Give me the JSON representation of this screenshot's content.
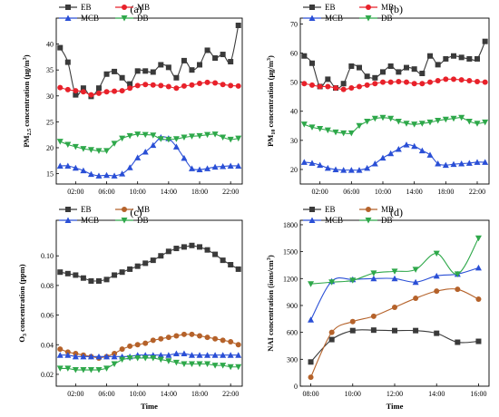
{
  "figure": {
    "colors": {
      "EB": "#3a3a3a",
      "MB": "#e8212a",
      "MCB": "#2a4fd6",
      "DB": "#2ea84a",
      "MB_panel_cd": "#b5622a",
      "background": "#ffffff"
    }
  },
  "chart_data": [
    {
      "id": "a",
      "panel_label": "(a)",
      "type": "line",
      "ylabel": "PM2.5 concentration (μg/m³)",
      "ylabel_parts": {
        "pre": "PM",
        "sub": "2.5",
        "mid": " concentration (μg/m",
        "sup": "3",
        "post": ")"
      },
      "xlabel": "",
      "x_tick_labels": [
        "02:00",
        "06:00",
        "10:00",
        "14:00",
        "18:00",
        "22:00"
      ],
      "x_ticks": [
        2,
        6,
        10,
        14,
        18,
        22
      ],
      "xlim": [
        -0.5,
        23.5
      ],
      "ylim": [
        13,
        45
      ],
      "y_ticks": [
        15,
        20,
        25,
        30,
        35,
        40
      ],
      "y_tick_labels": [
        "15",
        "20",
        "25",
        "30",
        "35",
        "40"
      ],
      "legend": [
        "EB",
        "MB",
        "MCB",
        "DB"
      ],
      "x": [
        0,
        1,
        2,
        3,
        4,
        5,
        6,
        7,
        8,
        9,
        10,
        11,
        12,
        13,
        14,
        15,
        16,
        17,
        18,
        19,
        20,
        21,
        22,
        23
      ],
      "series": [
        {
          "name": "EB",
          "marker": "square",
          "color": "#3a3a3a",
          "values": [
            39.3,
            36.5,
            30.2,
            31.5,
            29.9,
            31.5,
            34.2,
            34.7,
            33.5,
            32.3,
            34.8,
            34.8,
            34.6,
            36.0,
            35.5,
            33.5,
            36.8,
            35.0,
            36.0,
            38.8,
            37.3,
            38.0,
            36.6,
            43.6
          ]
        },
        {
          "name": "MB",
          "marker": "circle",
          "color": "#e8212a",
          "values": [
            31.6,
            31.2,
            31.0,
            30.8,
            30.2,
            30.5,
            30.8,
            30.9,
            31.0,
            31.5,
            32.0,
            32.2,
            32.1,
            32.0,
            31.8,
            31.5,
            31.9,
            32.1,
            32.4,
            32.6,
            32.5,
            32.2,
            32.0,
            31.9
          ]
        },
        {
          "name": "MCB",
          "marker": "triangle-up",
          "color": "#2a4fd6",
          "values": [
            16.5,
            16.5,
            16.1,
            15.6,
            14.9,
            14.6,
            14.7,
            14.6,
            15.0,
            16.2,
            18.1,
            19.2,
            20.5,
            22.0,
            21.8,
            20.2,
            18.0,
            16.0,
            15.8,
            16.0,
            16.3,
            16.4,
            16.5,
            16.5
          ]
        },
        {
          "name": "DB",
          "marker": "triangle-down",
          "color": "#2ea84a",
          "values": [
            21.2,
            20.6,
            20.2,
            19.8,
            19.6,
            19.4,
            19.4,
            20.8,
            21.8,
            22.3,
            22.6,
            22.5,
            22.4,
            21.7,
            21.6,
            21.7,
            22.0,
            22.2,
            22.3,
            22.5,
            22.6,
            22.0,
            21.6,
            21.8
          ]
        }
      ]
    },
    {
      "id": "b",
      "panel_label": "(b)",
      "type": "line",
      "ylabel": "PM10 concentration (μg/m³)",
      "ylabel_parts": {
        "pre": "PM",
        "sub": "10",
        "mid": " concentration (μg/m",
        "sup": "3",
        "post": ")"
      },
      "xlabel": "",
      "x_tick_labels": [
        "02:00",
        "06:00",
        "10:00",
        "14:00",
        "18:00",
        "22:00"
      ],
      "x_ticks": [
        2,
        6,
        10,
        14,
        18,
        22
      ],
      "xlim": [
        -0.5,
        23.5
      ],
      "ylim": [
        15,
        72
      ],
      "y_ticks": [
        20,
        30,
        40,
        50,
        60,
        70
      ],
      "y_tick_labels": [
        "20",
        "30",
        "40",
        "50",
        "60",
        "70"
      ],
      "legend": [
        "EB",
        "MB",
        "MCB",
        "DB"
      ],
      "x": [
        0,
        1,
        2,
        3,
        4,
        5,
        6,
        7,
        8,
        9,
        10,
        11,
        12,
        13,
        14,
        15,
        16,
        17,
        18,
        19,
        20,
        21,
        22,
        23
      ],
      "series": [
        {
          "name": "EB",
          "marker": "square",
          "color": "#3a3a3a",
          "values": [
            59.0,
            56.5,
            48.5,
            51.0,
            48.0,
            49.5,
            55.5,
            55.0,
            52.0,
            51.5,
            53.5,
            55.5,
            53.5,
            55.0,
            54.5,
            53.0,
            59.0,
            56.0,
            58.0,
            59.0,
            58.5,
            58.0,
            58.0,
            64.0
          ]
        },
        {
          "name": "MB",
          "marker": "circle",
          "color": "#e8212a",
          "values": [
            49.5,
            49.0,
            48.5,
            48.5,
            48.0,
            47.5,
            48.0,
            48.5,
            49.0,
            49.5,
            50.0,
            50.0,
            50.2,
            50.0,
            49.5,
            49.5,
            50.0,
            50.5,
            51.0,
            51.0,
            50.8,
            50.5,
            50.2,
            50.0
          ]
        },
        {
          "name": "MCB",
          "marker": "triangle-up",
          "color": "#2a4fd6",
          "values": [
            22.5,
            22.2,
            21.5,
            20.5,
            20.0,
            19.8,
            19.8,
            19.8,
            20.5,
            22.0,
            24.0,
            25.5,
            27.0,
            28.5,
            28.0,
            26.5,
            25.0,
            22.0,
            21.5,
            21.8,
            22.0,
            22.2,
            22.5,
            22.5
          ]
        },
        {
          "name": "DB",
          "marker": "triangle-down",
          "color": "#2ea84a",
          "values": [
            35.5,
            34.5,
            34.0,
            33.5,
            32.8,
            32.5,
            32.5,
            35.0,
            36.5,
            37.5,
            37.8,
            37.5,
            36.5,
            35.8,
            35.5,
            35.8,
            36.2,
            36.8,
            37.2,
            37.5,
            37.8,
            36.5,
            35.8,
            36.2
          ]
        }
      ]
    },
    {
      "id": "c",
      "panel_label": "(c)",
      "type": "line",
      "ylabel": "O3 concentration (ppm)",
      "ylabel_parts": {
        "pre": "O",
        "sub": "3",
        "mid": " concentration (ppm)",
        "sup": "",
        "post": ""
      },
      "xlabel": "Time",
      "x_tick_labels": [
        "02:00",
        "06:00",
        "10:00",
        "14:00",
        "18:00",
        "22:00"
      ],
      "x_ticks": [
        2,
        6,
        10,
        14,
        18,
        22
      ],
      "xlim": [
        -0.5,
        23.5
      ],
      "ylim": [
        0.012,
        0.124
      ],
      "y_ticks": [
        0.02,
        0.04,
        0.06,
        0.08,
        0.1
      ],
      "y_tick_labels": [
        "0.02",
        "0.04",
        "0.06",
        "0.08",
        "0.10"
      ],
      "legend": [
        "EB",
        "MB",
        "MCB",
        "DB"
      ],
      "x": [
        0,
        1,
        2,
        3,
        4,
        5,
        6,
        7,
        8,
        9,
        10,
        11,
        12,
        13,
        14,
        15,
        16,
        17,
        18,
        19,
        20,
        21,
        22,
        23
      ],
      "series": [
        {
          "name": "EB",
          "marker": "square",
          "color": "#3a3a3a",
          "values": [
            0.089,
            0.088,
            0.087,
            0.085,
            0.083,
            0.083,
            0.084,
            0.087,
            0.089,
            0.091,
            0.093,
            0.095,
            0.097,
            0.1,
            0.103,
            0.105,
            0.106,
            0.107,
            0.106,
            0.104,
            0.101,
            0.097,
            0.094,
            0.091
          ]
        },
        {
          "name": "MB",
          "marker": "circle",
          "color": "#b5622a",
          "values": [
            0.037,
            0.035,
            0.034,
            0.033,
            0.032,
            0.031,
            0.032,
            0.034,
            0.037,
            0.039,
            0.04,
            0.041,
            0.043,
            0.044,
            0.045,
            0.046,
            0.047,
            0.047,
            0.046,
            0.045,
            0.044,
            0.043,
            0.042,
            0.04
          ]
        },
        {
          "name": "MCB",
          "marker": "triangle-up",
          "color": "#2a4fd6",
          "values": [
            0.033,
            0.033,
            0.032,
            0.032,
            0.032,
            0.032,
            0.032,
            0.032,
            0.032,
            0.032,
            0.033,
            0.033,
            0.033,
            0.033,
            0.033,
            0.034,
            0.034,
            0.033,
            0.033,
            0.033,
            0.033,
            0.033,
            0.033,
            0.033
          ]
        },
        {
          "name": "DB",
          "marker": "triangle-down",
          "color": "#2ea84a",
          "values": [
            0.024,
            0.024,
            0.023,
            0.023,
            0.023,
            0.023,
            0.024,
            0.027,
            0.03,
            0.031,
            0.031,
            0.031,
            0.031,
            0.03,
            0.029,
            0.028,
            0.027,
            0.027,
            0.027,
            0.027,
            0.026,
            0.026,
            0.025,
            0.025
          ]
        }
      ]
    },
    {
      "id": "d",
      "panel_label": "(d)",
      "type": "line",
      "ylabel": "NAI concentration (ions/cm³)",
      "ylabel_parts": {
        "pre": "NAI concentration (ions/cm",
        "sub": "",
        "mid": "",
        "sup": "3",
        "post": ")"
      },
      "xlabel": "Time",
      "x_tick_labels": [
        "08:00",
        "10:00",
        "12:00",
        "14:00",
        "16:00"
      ],
      "x_ticks": [
        8,
        10,
        12,
        14,
        16
      ],
      "xlim": [
        7.5,
        16.5
      ],
      "ylim": [
        0,
        1850
      ],
      "y_ticks": [
        0,
        300,
        600,
        900,
        1200,
        1500,
        1800
      ],
      "y_tick_labels": [
        "0",
        "300",
        "600",
        "900",
        "1200",
        "1500",
        "1800"
      ],
      "legend": [
        "EB",
        "MB",
        "MCB",
        "DB"
      ],
      "x": [
        8,
        9,
        10,
        11,
        12,
        13,
        14,
        15,
        16
      ],
      "series": [
        {
          "name": "EB",
          "marker": "square",
          "color": "#3a3a3a",
          "values": [
            270,
            520,
            620,
            625,
            620,
            620,
            590,
            490,
            500
          ]
        },
        {
          "name": "MB",
          "marker": "circle",
          "color": "#b5622a",
          "values": [
            100,
            600,
            720,
            780,
            880,
            980,
            1060,
            1080,
            970
          ]
        },
        {
          "name": "MCB",
          "marker": "triangle-up",
          "color": "#2a4fd6",
          "values": [
            740,
            1170,
            1190,
            1200,
            1200,
            1160,
            1230,
            1250,
            1320
          ]
        },
        {
          "name": "DB",
          "marker": "triangle-down",
          "color": "#2ea84a",
          "values": [
            1140,
            1160,
            1180,
            1260,
            1280,
            1300,
            1480,
            1250,
            1650
          ]
        }
      ]
    }
  ]
}
